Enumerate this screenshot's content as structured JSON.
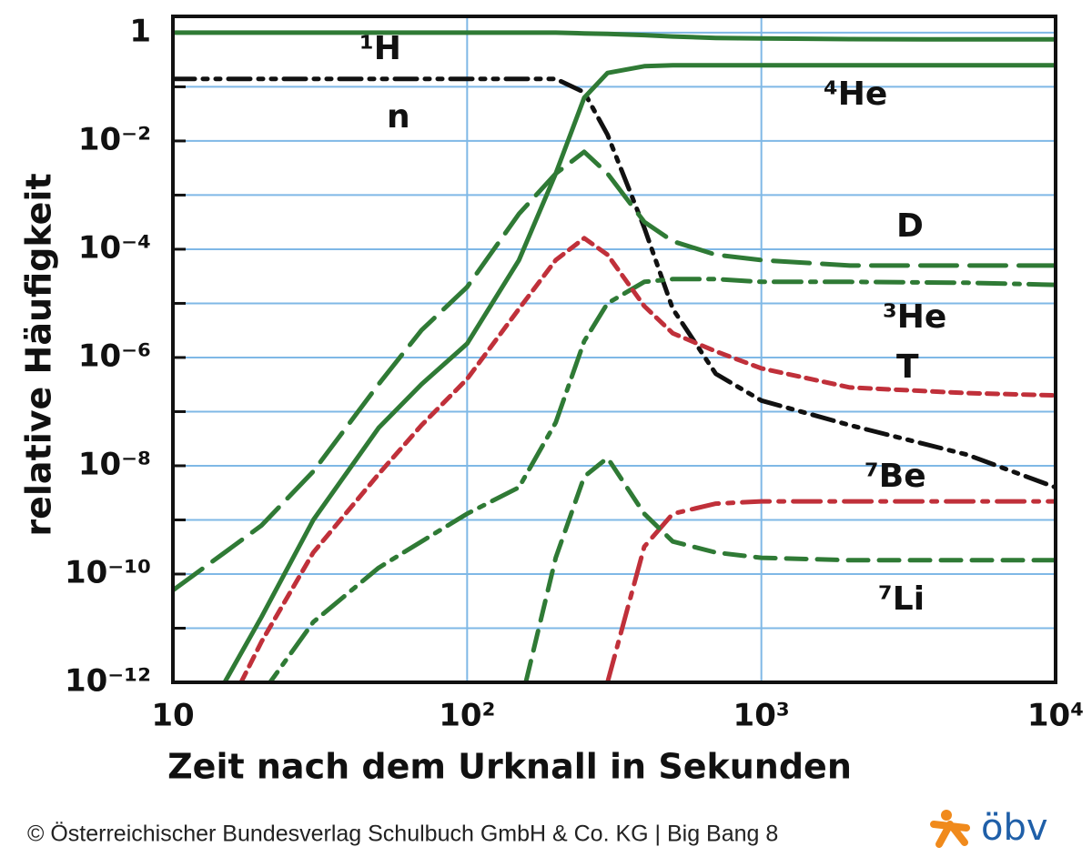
{
  "chart_data": {
    "type": "line",
    "x_label": "Zeit nach dem Urknall in Sekunden",
    "y_label": "relative Häufigkeit",
    "x_log": true,
    "y_log": true,
    "grid": true,
    "xlim": [
      10,
      10000
    ],
    "xticks": [
      10,
      {
        "value": 100,
        "label": "10²"
      },
      {
        "value": 1000,
        "label": "10³"
      },
      {
        "value": 10000,
        "label": "10⁴"
      }
    ],
    "ylim": [
      1e-12,
      2
    ],
    "yticks": [
      1,
      {
        "value": 0.01,
        "label": "10⁻²"
      },
      {
        "value": 0.0001,
        "label": "10⁻⁴"
      },
      {
        "value": 1e-06,
        "label": "10⁻⁶"
      },
      {
        "value": 1e-08,
        "label": "10⁻⁸"
      },
      {
        "value": 1e-10,
        "label": "10⁻¹⁰"
      },
      {
        "value": 1e-12,
        "label": "10⁻¹²"
      }
    ],
    "yminorticks": [
      0.1,
      0.001,
      1e-05,
      1e-07,
      1e-09,
      1e-11
    ],
    "x": [
      10,
      15,
      20,
      30,
      50,
      70,
      100,
      150,
      200,
      250,
      300,
      400,
      500,
      700,
      1000,
      2000,
      5000,
      10000
    ],
    "series": [
      {
        "name": "¹H",
        "color": "#2f7a35",
        "dash": "solid",
        "values": [
          1,
          1,
          1,
          1,
          1,
          1,
          1,
          1,
          1,
          0.97,
          0.95,
          0.9,
          0.85,
          0.8,
          0.78,
          0.76,
          0.75,
          0.75
        ]
      },
      {
        "name": "n",
        "color": "#111111",
        "dash": "dashdotdot",
        "values": [
          0.14,
          0.14,
          0.14,
          0.14,
          0.14,
          0.14,
          0.14,
          0.14,
          0.14,
          0.079,
          0.013,
          0.00025,
          7.9e-06,
          5e-07,
          1.6e-07,
          5.6e-08,
          1.6e-08,
          4e-09
        ]
      },
      {
        "name": "⁴He",
        "color": "#2f7a35",
        "dash": "solid",
        "values": [
          3e-14,
          1e-12,
          1.6e-11,
          1e-09,
          5e-08,
          3.2e-07,
          1.8e-06,
          6.3e-05,
          0.0025,
          0.063,
          0.18,
          0.24,
          0.25,
          0.25,
          0.25,
          0.25,
          0.25,
          0.25
        ]
      },
      {
        "name": "D",
        "color": "#2f7a35",
        "dash": "longdash",
        "values": [
          5e-11,
          2.5e-10,
          7.9e-10,
          7.9e-09,
          3.2e-07,
          3.2e-06,
          2e-05,
          0.00045,
          0.0025,
          0.0063,
          0.0025,
          0.00032,
          0.00014,
          7.9e-05,
          6.3e-05,
          5e-05,
          5e-05,
          5e-05
        ]
      },
      {
        "name": "³He",
        "color": "#2f7a35",
        "dash": "dashdot",
        "values": [
          null,
          null,
          6e-13,
          1.3e-11,
          1.3e-10,
          4e-10,
          1.3e-09,
          4e-09,
          6.3e-08,
          2e-06,
          1e-05,
          2.5e-05,
          2.8e-05,
          2.8e-05,
          2.5e-05,
          2.5e-05,
          2.4e-05,
          2.2e-05
        ]
      },
      {
        "name": "T",
        "color": "#c0303a",
        "dash": "shortdash",
        "values": [
          null,
          2.5e-13,
          5.6e-12,
          2.5e-10,
          7e-09,
          5.6e-08,
          4e-07,
          7.9e-06,
          6.3e-05,
          0.00016,
          7.9e-05,
          8.9e-06,
          2.8e-06,
          1.3e-06,
          6.3e-07,
          2.8e-07,
          2.2e-07,
          2e-07
        ]
      },
      {
        "name": "⁷Be",
        "color": "#c0303a",
        "dash": "dashdot",
        "values": [
          null,
          null,
          null,
          null,
          null,
          null,
          null,
          null,
          null,
          null,
          1e-12,
          3.2e-10,
          1.3e-09,
          2e-09,
          2.2e-09,
          2.2e-09,
          2.2e-09,
          2.2e-09
        ]
      },
      {
        "name": "⁷Li",
        "color": "#2f7a35",
        "dash": "dashed",
        "values": [
          null,
          null,
          null,
          null,
          null,
          null,
          null,
          3e-13,
          2e-10,
          6.3e-09,
          1.4e-08,
          1.3e-09,
          4e-10,
          2.5e-10,
          2e-10,
          1.8e-10,
          1.8e-10,
          1.8e-10
        ]
      }
    ],
    "footer_text": "© Österreichischer Bundesverlag Schulbuch GmbH & Co. KG |  Big Bang 8",
    "logo_text": "öbv"
  }
}
